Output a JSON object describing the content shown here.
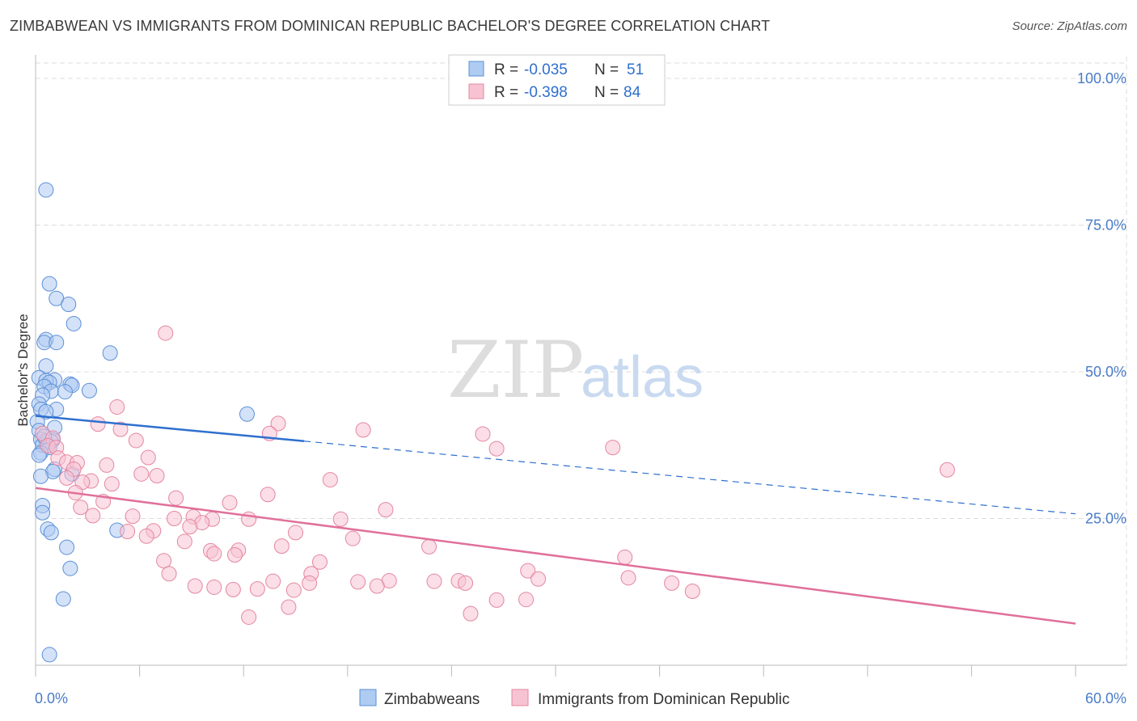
{
  "header": {
    "title": "ZIMBABWEAN VS IMMIGRANTS FROM DOMINICAN REPUBLIC BACHELOR'S DEGREE CORRELATION CHART",
    "source": "Source: ZipAtlas.com"
  },
  "watermark": {
    "zip": "ZIP",
    "atlas": "atlas"
  },
  "colors": {
    "blue_fill": "#aecbf2",
    "blue_stroke": "#5b8fd6",
    "blue_line": "#2f6fcf",
    "pink_fill": "#f7c3d3",
    "pink_stroke": "#e4879f",
    "pink_line": "#e0709a",
    "grid": "#dddddd",
    "axis_label": "#4a7cc8"
  },
  "legend": {
    "rows": [
      {
        "r_label": "R =",
        "r_value": "-0.035",
        "n_label": "N =",
        "n_value": "51"
      },
      {
        "r_label": "R =",
        "r_value": "-0.398",
        "n_label": "N =",
        "n_value": "84"
      }
    ]
  },
  "bottom_legend": [
    "Zimbabweans",
    "Immigrants from Dominican Republic"
  ],
  "chart_data": {
    "type": "scatter",
    "title": "ZIMBABWEAN VS IMMIGRANTS FROM DOMINICAN REPUBLIC BACHELOR'S DEGREE CORRELATION CHART",
    "xlabel": "",
    "ylabel": "Bachelor's Degree",
    "xlim": [
      0,
      60
    ],
    "ylim": [
      0,
      105
    ],
    "x_tick_labels": [
      "0.0%",
      "60.0%"
    ],
    "y_ticks": [
      25,
      50,
      75,
      100
    ],
    "y_tick_labels": [
      "25.0%",
      "50.0%",
      "75.0%",
      "100.0%"
    ],
    "series": [
      {
        "name": "Zimbabweans",
        "r": -0.035,
        "n": 51,
        "trend": {
          "x0": 0,
          "y0": 42.5,
          "x_solid_end": 15.5,
          "x1": 60,
          "y1": 25.8
        },
        "points": [
          [
            0.6,
            81
          ],
          [
            0.8,
            65
          ],
          [
            1.2,
            62.5
          ],
          [
            1.9,
            61.5
          ],
          [
            2.2,
            58.2
          ],
          [
            0.6,
            55.5
          ],
          [
            0.5,
            55
          ],
          [
            1.2,
            55
          ],
          [
            4.3,
            53.2
          ],
          [
            0.6,
            51
          ],
          [
            0.2,
            49
          ],
          [
            1.1,
            48.6
          ],
          [
            0.6,
            48.5
          ],
          [
            0.8,
            48.2
          ],
          [
            2.0,
            47.9
          ],
          [
            2.1,
            47.7
          ],
          [
            0.5,
            47.5
          ],
          [
            0.9,
            46.7
          ],
          [
            1.7,
            46.6
          ],
          [
            3.1,
            46.8
          ],
          [
            0.4,
            46
          ],
          [
            0.2,
            44.5
          ],
          [
            0.3,
            43.6
          ],
          [
            1.2,
            43.6
          ],
          [
            0.6,
            43.2
          ],
          [
            12.2,
            42.8
          ],
          [
            0.1,
            41.5
          ],
          [
            1.1,
            40.5
          ],
          [
            0.2,
            40
          ],
          [
            0.3,
            38.5
          ],
          [
            0.6,
            38.2
          ],
          [
            1.0,
            38.4
          ],
          [
            0.9,
            38.1
          ],
          [
            0.4,
            37.5
          ],
          [
            0.8,
            37.1
          ],
          [
            0.3,
            36.2
          ],
          [
            0.2,
            35.8
          ],
          [
            1.1,
            33.4
          ],
          [
            1.0,
            33
          ],
          [
            2.1,
            32.6
          ],
          [
            0.3,
            32.2
          ],
          [
            0.4,
            27.2
          ],
          [
            0.4,
            26
          ],
          [
            0.7,
            23.2
          ],
          [
            0.9,
            22.6
          ],
          [
            4.7,
            23
          ],
          [
            1.8,
            20.1
          ],
          [
            2.0,
            16.5
          ],
          [
            1.6,
            11.3
          ],
          [
            0.8,
            1.8
          ],
          [
            0.5,
            39
          ]
        ]
      },
      {
        "name": "Immigrants from Dominican Republic",
        "r": -0.398,
        "n": 84,
        "trend": {
          "x0": 0,
          "y0": 30.2,
          "x1": 60,
          "y1": 7.1
        },
        "points": [
          [
            7.5,
            56.6
          ],
          [
            4.7,
            44
          ],
          [
            14.0,
            41.2
          ],
          [
            3.6,
            41.1
          ],
          [
            13.5,
            39.5
          ],
          [
            18.9,
            40.1
          ],
          [
            25.8,
            39.4
          ],
          [
            4.9,
            40.2
          ],
          [
            0.4,
            39.5
          ],
          [
            1.0,
            38.7
          ],
          [
            5.8,
            38.3
          ],
          [
            26.6,
            36.9
          ],
          [
            33.3,
            37.1
          ],
          [
            0.7,
            37.4
          ],
          [
            1.2,
            37.1
          ],
          [
            6.5,
            35.4
          ],
          [
            1.3,
            35.3
          ],
          [
            1.8,
            34.6
          ],
          [
            4.1,
            34.1
          ],
          [
            2.4,
            34.5
          ],
          [
            2.2,
            33.4
          ],
          [
            6.1,
            32.6
          ],
          [
            7.0,
            32.3
          ],
          [
            1.8,
            31.9
          ],
          [
            3.2,
            31.4
          ],
          [
            2.7,
            31.2
          ],
          [
            17.0,
            31.6
          ],
          [
            4.4,
            30.9
          ],
          [
            2.3,
            29.4
          ],
          [
            13.4,
            29.1
          ],
          [
            8.1,
            28.5
          ],
          [
            3.9,
            27.9
          ],
          [
            11.2,
            27.7
          ],
          [
            2.6,
            26.9
          ],
          [
            20.2,
            26.5
          ],
          [
            3.3,
            25.5
          ],
          [
            5.6,
            25.4
          ],
          [
            9.1,
            25.3
          ],
          [
            8.0,
            25.0
          ],
          [
            10.2,
            24.9
          ],
          [
            12.3,
            24.9
          ],
          [
            17.6,
            24.9
          ],
          [
            9.6,
            24.3
          ],
          [
            8.9,
            23.6
          ],
          [
            15.0,
            22.6
          ],
          [
            6.8,
            22.9
          ],
          [
            5.3,
            22.8
          ],
          [
            6.4,
            22.0
          ],
          [
            18.3,
            21.6
          ],
          [
            8.6,
            21.1
          ],
          [
            11.7,
            19.6
          ],
          [
            14.2,
            20.3
          ],
          [
            10.1,
            19.5
          ],
          [
            11.5,
            18.8
          ],
          [
            22.7,
            20.2
          ],
          [
            10.3,
            19.0
          ],
          [
            7.4,
            17.8
          ],
          [
            16.4,
            17.6
          ],
          [
            34.0,
            18.4
          ],
          [
            15.9,
            15.6
          ],
          [
            28.4,
            16.1
          ],
          [
            7.7,
            15.6
          ],
          [
            18.6,
            14.2
          ],
          [
            20.4,
            14.4
          ],
          [
            13.7,
            14.3
          ],
          [
            15.8,
            14.0
          ],
          [
            23.0,
            14.3
          ],
          [
            24.4,
            14.4
          ],
          [
            29.0,
            14.7
          ],
          [
            34.2,
            14.9
          ],
          [
            9.2,
            13.5
          ],
          [
            10.3,
            13.3
          ],
          [
            11.4,
            12.9
          ],
          [
            12.8,
            13.0
          ],
          [
            19.7,
            13.5
          ],
          [
            24.8,
            14.0
          ],
          [
            36.7,
            14.0
          ],
          [
            37.9,
            12.6
          ],
          [
            14.9,
            12.8
          ],
          [
            26.6,
            11.1
          ],
          [
            28.3,
            11.2
          ],
          [
            14.6,
            9.9
          ],
          [
            12.3,
            8.2
          ],
          [
            25.1,
            8.8
          ],
          [
            52.6,
            33.3
          ]
        ]
      }
    ]
  }
}
